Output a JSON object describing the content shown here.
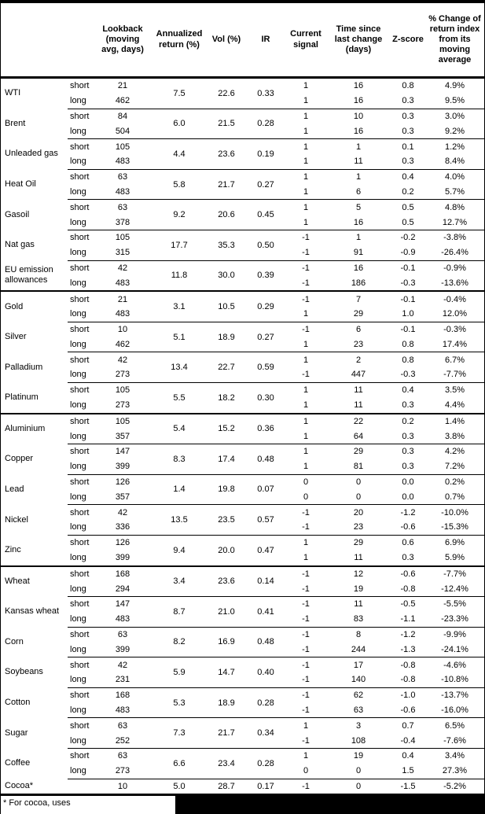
{
  "table": {
    "columns": [
      "",
      "",
      "Lookback\n(moving\navg, days)",
      "Annualized\nreturn (%)",
      "Vol (%)",
      "IR",
      "Current\nsignal",
      "Time since\nlast change\n(days)",
      "Z-score",
      "% Change of\nreturn index\nfrom its\nmoving\naverage"
    ],
    "sections": [
      {
        "groups": [
          {
            "name": "WTI",
            "ann": "7.5",
            "vol": "22.6",
            "ir": "0.33",
            "rows": [
              {
                "side": "short",
                "lookback": "21",
                "signal": "1",
                "days": "16",
                "z": "0.8",
                "pct": "4.9%"
              },
              {
                "side": "long",
                "lookback": "462",
                "signal": "1",
                "days": "16",
                "z": "0.3",
                "pct": "9.5%"
              }
            ]
          },
          {
            "name": "Brent",
            "ann": "6.0",
            "vol": "21.5",
            "ir": "0.28",
            "rows": [
              {
                "side": "short",
                "lookback": "84",
                "signal": "1",
                "days": "10",
                "z": "0.3",
                "pct": "3.0%"
              },
              {
                "side": "long",
                "lookback": "504",
                "signal": "1",
                "days": "16",
                "z": "0.3",
                "pct": "9.2%"
              }
            ]
          },
          {
            "name": "Unleaded gas",
            "ann": "4.4",
            "vol": "23.6",
            "ir": "0.19",
            "rows": [
              {
                "side": "short",
                "lookback": "105",
                "signal": "1",
                "days": "1",
                "z": "0.1",
                "pct": "1.2%"
              },
              {
                "side": "long",
                "lookback": "483",
                "signal": "1",
                "days": "11",
                "z": "0.3",
                "pct": "8.4%"
              }
            ]
          },
          {
            "name": "Heat Oil",
            "ann": "5.8",
            "vol": "21.7",
            "ir": "0.27",
            "rows": [
              {
                "side": "short",
                "lookback": "63",
                "signal": "1",
                "days": "1",
                "z": "0.4",
                "pct": "4.0%"
              },
              {
                "side": "long",
                "lookback": "483",
                "signal": "1",
                "days": "6",
                "z": "0.2",
                "pct": "5.7%"
              }
            ]
          },
          {
            "name": "Gasoil",
            "ann": "9.2",
            "vol": "20.6",
            "ir": "0.45",
            "rows": [
              {
                "side": "short",
                "lookback": "63",
                "signal": "1",
                "days": "5",
                "z": "0.5",
                "pct": "4.8%"
              },
              {
                "side": "long",
                "lookback": "378",
                "signal": "1",
                "days": "16",
                "z": "0.5",
                "pct": "12.7%"
              }
            ]
          },
          {
            "name": "Nat gas",
            "ann": "17.7",
            "vol": "35.3",
            "ir": "0.50",
            "rows": [
              {
                "side": "short",
                "lookback": "105",
                "signal": "-1",
                "days": "1",
                "z": "-0.2",
                "pct": "-3.8%"
              },
              {
                "side": "long",
                "lookback": "315",
                "signal": "-1",
                "days": "91",
                "z": "-0.9",
                "pct": "-26.4%"
              }
            ]
          },
          {
            "name": "EU emission allowances",
            "ann": "11.8",
            "vol": "30.0",
            "ir": "0.39",
            "rows": [
              {
                "side": "short",
                "lookback": "42",
                "signal": "-1",
                "days": "16",
                "z": "-0.1",
                "pct": "-0.9%"
              },
              {
                "side": "long",
                "lookback": "483",
                "signal": "-1",
                "days": "186",
                "z": "-0.3",
                "pct": "-13.6%"
              }
            ]
          }
        ]
      },
      {
        "groups": [
          {
            "name": "Gold",
            "ann": "3.1",
            "vol": "10.5",
            "ir": "0.29",
            "rows": [
              {
                "side": "short",
                "lookback": "21",
                "signal": "-1",
                "days": "7",
                "z": "-0.1",
                "pct": "-0.4%"
              },
              {
                "side": "long",
                "lookback": "483",
                "signal": "1",
                "days": "29",
                "z": "1.0",
                "pct": "12.0%"
              }
            ]
          },
          {
            "name": "Silver",
            "ann": "5.1",
            "vol": "18.9",
            "ir": "0.27",
            "rows": [
              {
                "side": "short",
                "lookback": "10",
                "signal": "-1",
                "days": "6",
                "z": "-0.1",
                "pct": "-0.3%"
              },
              {
                "side": "long",
                "lookback": "462",
                "signal": "1",
                "days": "23",
                "z": "0.8",
                "pct": "17.4%"
              }
            ]
          },
          {
            "name": "Palladium",
            "ann": "13.4",
            "vol": "22.7",
            "ir": "0.59",
            "rows": [
              {
                "side": "short",
                "lookback": "42",
                "signal": "1",
                "days": "2",
                "z": "0.8",
                "pct": "6.7%"
              },
              {
                "side": "long",
                "lookback": "273",
                "signal": "-1",
                "days": "447",
                "z": "-0.3",
                "pct": "-7.7%"
              }
            ]
          },
          {
            "name": "Platinum",
            "ann": "5.5",
            "vol": "18.2",
            "ir": "0.30",
            "rows": [
              {
                "side": "short",
                "lookback": "105",
                "signal": "1",
                "days": "11",
                "z": "0.4",
                "pct": "3.5%"
              },
              {
                "side": "long",
                "lookback": "273",
                "signal": "1",
                "days": "11",
                "z": "0.3",
                "pct": "4.4%"
              }
            ]
          }
        ]
      },
      {
        "groups": [
          {
            "name": "Aluminium",
            "ann": "5.4",
            "vol": "15.2",
            "ir": "0.36",
            "rows": [
              {
                "side": "short",
                "lookback": "105",
                "signal": "1",
                "days": "22",
                "z": "0.2",
                "pct": "1.4%"
              },
              {
                "side": "long",
                "lookback": "357",
                "signal": "1",
                "days": "64",
                "z": "0.3",
                "pct": "3.8%"
              }
            ]
          },
          {
            "name": "Copper",
            "ann": "8.3",
            "vol": "17.4",
            "ir": "0.48",
            "rows": [
              {
                "side": "short",
                "lookback": "147",
                "signal": "1",
                "days": "29",
                "z": "0.3",
                "pct": "4.2%"
              },
              {
                "side": "long",
                "lookback": "399",
                "signal": "1",
                "days": "81",
                "z": "0.3",
                "pct": "7.2%"
              }
            ]
          },
          {
            "name": "Lead",
            "ann": "1.4",
            "vol": "19.8",
            "ir": "0.07",
            "rows": [
              {
                "side": "short",
                "lookback": "126",
                "signal": "0",
                "days": "0",
                "z": "0.0",
                "pct": "0.2%"
              },
              {
                "side": "long",
                "lookback": "357",
                "signal": "0",
                "days": "0",
                "z": "0.0",
                "pct": "0.7%"
              }
            ]
          },
          {
            "name": "Nickel",
            "ann": "13.5",
            "vol": "23.5",
            "ir": "0.57",
            "rows": [
              {
                "side": "short",
                "lookback": "42",
                "signal": "-1",
                "days": "20",
                "z": "-1.2",
                "pct": "-10.0%"
              },
              {
                "side": "long",
                "lookback": "336",
                "signal": "-1",
                "days": "23",
                "z": "-0.6",
                "pct": "-15.3%"
              }
            ]
          },
          {
            "name": "Zinc",
            "ann": "9.4",
            "vol": "20.0",
            "ir": "0.47",
            "rows": [
              {
                "side": "short",
                "lookback": "126",
                "signal": "1",
                "days": "29",
                "z": "0.6",
                "pct": "6.9%"
              },
              {
                "side": "long",
                "lookback": "399",
                "signal": "1",
                "days": "11",
                "z": "0.3",
                "pct": "5.9%"
              }
            ]
          }
        ]
      },
      {
        "groups": [
          {
            "name": "Wheat",
            "ann": "3.4",
            "vol": "23.6",
            "ir": "0.14",
            "rows": [
              {
                "side": "short",
                "lookback": "168",
                "signal": "-1",
                "days": "12",
                "z": "-0.6",
                "pct": "-7.7%"
              },
              {
                "side": "long",
                "lookback": "294",
                "signal": "-1",
                "days": "19",
                "z": "-0.8",
                "pct": "-12.4%"
              }
            ]
          },
          {
            "name": "Kansas wheat",
            "ann": "8.7",
            "vol": "21.0",
            "ir": "0.41",
            "rows": [
              {
                "side": "short",
                "lookback": "147",
                "signal": "-1",
                "days": "11",
                "z": "-0.5",
                "pct": "-5.5%"
              },
              {
                "side": "long",
                "lookback": "483",
                "signal": "-1",
                "days": "83",
                "z": "-1.1",
                "pct": "-23.3%"
              }
            ]
          },
          {
            "name": "Corn",
            "ann": "8.2",
            "vol": "16.9",
            "ir": "0.48",
            "rows": [
              {
                "side": "short",
                "lookback": "63",
                "signal": "-1",
                "days": "8",
                "z": "-1.2",
                "pct": "-9.9%"
              },
              {
                "side": "long",
                "lookback": "399",
                "signal": "-1",
                "days": "244",
                "z": "-1.3",
                "pct": "-24.1%"
              }
            ]
          },
          {
            "name": "Soybeans",
            "ann": "5.9",
            "vol": "14.7",
            "ir": "0.40",
            "rows": [
              {
                "side": "short",
                "lookback": "42",
                "signal": "-1",
                "days": "17",
                "z": "-0.8",
                "pct": "-4.6%"
              },
              {
                "side": "long",
                "lookback": "231",
                "signal": "-1",
                "days": "140",
                "z": "-0.8",
                "pct": "-10.8%"
              }
            ]
          },
          {
            "name": "Cotton",
            "ann": "5.3",
            "vol": "18.9",
            "ir": "0.28",
            "rows": [
              {
                "side": "short",
                "lookback": "168",
                "signal": "-1",
                "days": "62",
                "z": "-1.0",
                "pct": "-13.7%"
              },
              {
                "side": "long",
                "lookback": "483",
                "signal": "-1",
                "days": "63",
                "z": "-0.6",
                "pct": "-16.0%"
              }
            ]
          },
          {
            "name": "Sugar",
            "ann": "7.3",
            "vol": "21.7",
            "ir": "0.34",
            "rows": [
              {
                "side": "short",
                "lookback": "63",
                "signal": "1",
                "days": "3",
                "z": "0.7",
                "pct": "6.5%"
              },
              {
                "side": "long",
                "lookback": "252",
                "signal": "-1",
                "days": "108",
                "z": "-0.4",
                "pct": "-7.6%"
              }
            ]
          },
          {
            "name": "Coffee",
            "ann": "6.6",
            "vol": "23.4",
            "ir": "0.28",
            "rows": [
              {
                "side": "short",
                "lookback": "63",
                "signal": "1",
                "days": "19",
                "z": "0.4",
                "pct": "3.4%"
              },
              {
                "side": "long",
                "lookback": "273",
                "signal": "0",
                "days": "0",
                "z": "1.5",
                "pct": "27.3%"
              }
            ]
          },
          {
            "name": "Cocoa*",
            "ann": "5.0",
            "vol": "28.7",
            "ir": "0.17",
            "rows": [
              {
                "side": "",
                "lookback": "10",
                "signal": "-1",
                "days": "0",
                "z": "-1.5",
                "pct": "-5.2%"
              }
            ]
          }
        ]
      }
    ]
  },
  "footnote": "* For cocoa, uses"
}
